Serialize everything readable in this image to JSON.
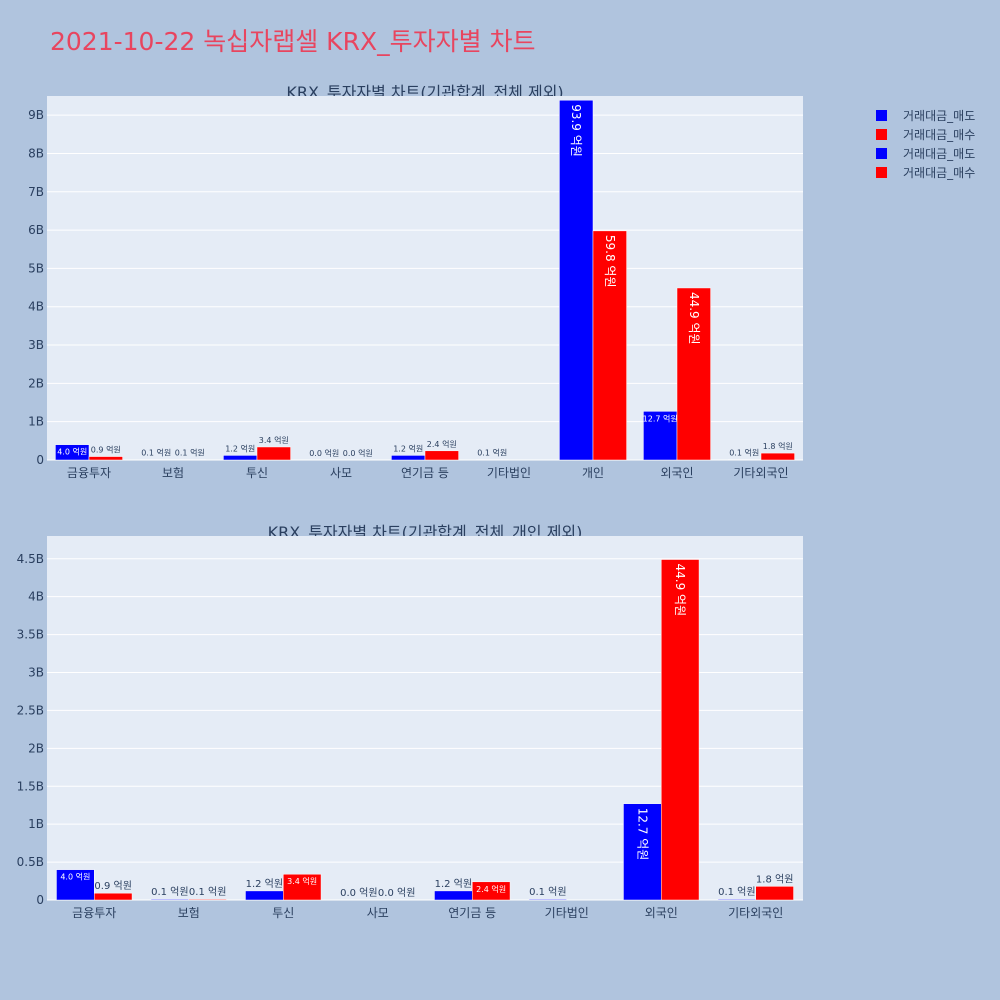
{
  "page_title": "2021-10-22 녹십자랩셀 KRX_투자자별 차트",
  "legend": [
    {
      "label": "거래대금_매도",
      "color": "#0000ff"
    },
    {
      "label": "거래대금_매수",
      "color": "#ff0000"
    },
    {
      "label": "거래대금_매도",
      "color": "#0000ff"
    },
    {
      "label": "거래대금_매수",
      "color": "#ff0000"
    }
  ],
  "chart_data": [
    {
      "type": "bar",
      "title": "KRX_투자자별 차트(기관합계_전체 제외)",
      "categories": [
        "금융투자",
        "보험",
        "투신",
        "사모",
        "연기금 등",
        "기타법인",
        "개인",
        "외국인",
        "기타외국인"
      ],
      "ylim": [
        0,
        9.5
      ],
      "yticks": [
        0,
        1,
        2,
        3,
        4,
        5,
        6,
        7,
        8,
        9
      ],
      "ytick_labels": [
        "0",
        "1B",
        "2B",
        "3B",
        "4B",
        "5B",
        "6B",
        "7B",
        "8B",
        "9B"
      ],
      "grid": true,
      "series": [
        {
          "name": "거래대금_매도",
          "color": "#0000ff",
          "values": [
            0.4,
            0.01,
            0.12,
            0.0,
            0.12,
            0.01,
            9.39,
            1.27,
            0.01
          ],
          "labels": [
            "4.0 억원",
            "0.1 억원",
            "1.2 억원",
            "0.0 억원",
            "1.2 억원",
            "0.1 억원",
            "93.9 억원",
            "12.7 억원",
            "0.1 억원"
          ]
        },
        {
          "name": "거래대금_매수",
          "color": "#ff0000",
          "values": [
            0.09,
            0.01,
            0.34,
            0.0,
            0.24,
            0.0,
            5.98,
            4.49,
            0.18
          ],
          "labels": [
            "0.9 억원",
            "0.1 억원",
            "3.4 억원",
            "0.0 억원",
            "2.4 억원",
            "",
            "59.8 억원",
            "44.9 억원",
            "1.8 억원"
          ]
        }
      ]
    },
    {
      "type": "bar",
      "title": "KRX_투자자별 차트(기관합계_전체_개인 제외)",
      "categories": [
        "금융투자",
        "보험",
        "투신",
        "사모",
        "연기금 등",
        "기타법인",
        "외국인",
        "기타외국인"
      ],
      "ylim": [
        0,
        4.8
      ],
      "yticks": [
        0,
        0.5,
        1,
        1.5,
        2,
        2.5,
        3,
        3.5,
        4,
        4.5
      ],
      "ytick_labels": [
        "0",
        "0.5B",
        "1B",
        "1.5B",
        "2B",
        "2.5B",
        "3B",
        "3.5B",
        "4B",
        "4.5B"
      ],
      "grid": true,
      "series": [
        {
          "name": "거래대금_매도",
          "color": "#0000ff",
          "values": [
            0.4,
            0.01,
            0.12,
            0.0,
            0.12,
            0.01,
            1.27,
            0.01
          ],
          "labels": [
            "4.0 억원",
            "0.1 억원",
            "1.2 억원",
            "0.0 억원",
            "1.2 억원",
            "0.1 억원",
            "12.7 억원",
            "0.1 억원"
          ]
        },
        {
          "name": "거래대금_매수",
          "color": "#ff0000",
          "values": [
            0.09,
            0.01,
            0.34,
            0.0,
            0.24,
            0.0,
            4.49,
            0.18
          ],
          "labels": [
            "0.9 억원",
            "0.1 억원",
            "3.4 억원",
            "0.0 억원",
            "2.4 억원",
            "",
            "44.9 억원",
            "1.8 억원"
          ]
        }
      ]
    }
  ]
}
